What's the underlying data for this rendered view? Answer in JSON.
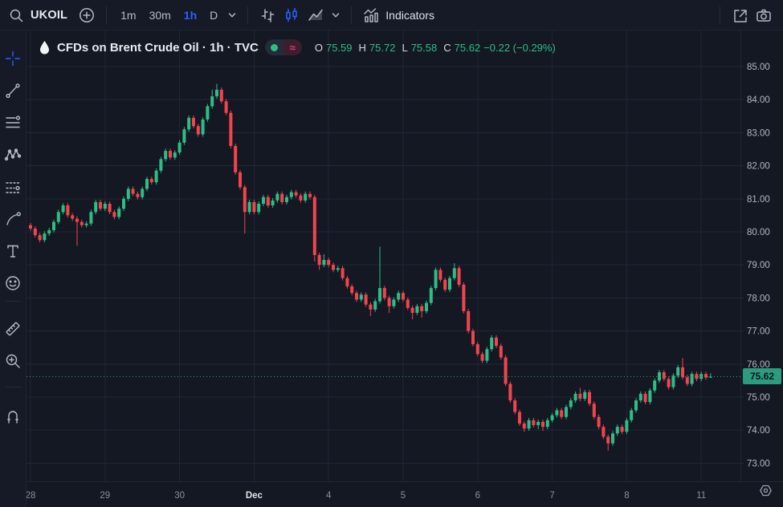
{
  "toolbar": {
    "symbol": "UKOIL",
    "timeframes": [
      {
        "label": "1m",
        "active": false
      },
      {
        "label": "30m",
        "active": false
      },
      {
        "label": "1h",
        "active": true
      },
      {
        "label": "D",
        "active": false
      }
    ],
    "indicators_label": "Indicators",
    "icons": [
      "search-icon",
      "compare-add-icon",
      "chevron-down-icon",
      "bars-chart-type-icon",
      "candles-chart-type-icon",
      "area-chart-type-icon",
      "indicators-icon",
      "fullscreen-icon",
      "snapshot-camera-icon"
    ]
  },
  "sidebar_tools": [
    "crosshair",
    "trend-line",
    "horizontal-lines",
    "xabcd-pattern",
    "forecast",
    "brush",
    "text",
    "emoji",
    "ruler",
    "zoom-in",
    "magnet"
  ],
  "legend": {
    "title": "CFDs on Brent Crude Oil · 1h · TVC",
    "delayed_symbol": "≈",
    "ohlc": {
      "open_label": "O",
      "open": "75.59",
      "high_label": "H",
      "high": "75.72",
      "low_label": "L",
      "low": "75.58",
      "close_label": "C",
      "close": "75.62",
      "change": "−0.22 (−0.29%)"
    }
  },
  "colors": {
    "bg": "#141823",
    "panel": "#151a26",
    "grid": "#202637",
    "up": "#2ebd85",
    "down": "#f2444f",
    "accent": "#2962ff",
    "axis_text": "#b2b6c1",
    "axis_text_major": "#dfe3ea",
    "last_price_bg": "#2c9c7e",
    "last_price_line": "#2c9c7e"
  },
  "chart_data": {
    "type": "candlestick",
    "title": "CFDs on Brent Crude Oil · 1h · TVC",
    "symbol": "UKOIL",
    "interval": "1h",
    "exchange": "TVC",
    "open": 75.59,
    "high": 75.72,
    "low": 75.58,
    "close": 75.62,
    "change": -0.22,
    "change_pct": -0.29,
    "last_price": 75.62,
    "last_price_label": "75.62",
    "y_axis": {
      "ticks": [
        "85.00",
        "84.00",
        "83.00",
        "82.00",
        "81.00",
        "80.00",
        "79.00",
        "78.00",
        "77.00",
        "76.00",
        "75.00",
        "74.00",
        "73.00"
      ],
      "min": 72.6,
      "max": 85.9
    },
    "x_axis": {
      "candles_per_day": 16,
      "ticks": [
        {
          "label": "28",
          "index": 0,
          "major": false
        },
        {
          "label": "29",
          "index": 16,
          "major": false
        },
        {
          "label": "30",
          "index": 32,
          "major": false
        },
        {
          "label": "Dec",
          "index": 48,
          "major": true
        },
        {
          "label": "4",
          "index": 64,
          "major": false
        },
        {
          "label": "5",
          "index": 80,
          "major": false
        },
        {
          "label": "6",
          "index": 96,
          "major": false
        },
        {
          "label": "7",
          "index": 112,
          "major": false
        },
        {
          "label": "8",
          "index": 128,
          "major": false
        },
        {
          "label": "11",
          "index": 144,
          "major": false
        }
      ]
    },
    "candles": [
      [
        80.2,
        80.27,
        80.03,
        80.1
      ],
      [
        80.1,
        80.17,
        79.83,
        79.9
      ],
      [
        79.9,
        79.97,
        79.68,
        79.75
      ],
      [
        79.75,
        80.02,
        79.68,
        79.95
      ],
      [
        79.95,
        80.12,
        79.88,
        80.05
      ],
      [
        80.05,
        80.37,
        79.98,
        80.3
      ],
      [
        80.3,
        80.67,
        80.23,
        80.6
      ],
      [
        80.6,
        80.87,
        80.53,
        80.8
      ],
      [
        80.8,
        80.87,
        80.43,
        80.5
      ],
      [
        80.5,
        80.57,
        80.33,
        80.4
      ],
      [
        80.4,
        80.47,
        79.58,
        80.3
      ],
      [
        80.3,
        80.37,
        80.13,
        80.2
      ],
      [
        80.2,
        80.32,
        80.13,
        80.25
      ],
      [
        80.25,
        80.67,
        80.18,
        80.6
      ],
      [
        80.6,
        80.97,
        80.53,
        80.9
      ],
      [
        80.9,
        80.97,
        80.63,
        80.7
      ],
      [
        80.7,
        80.92,
        80.63,
        80.85
      ],
      [
        80.85,
        80.92,
        80.53,
        80.6
      ],
      [
        80.6,
        80.67,
        80.38,
        80.45
      ],
      [
        80.45,
        80.77,
        80.38,
        80.7
      ],
      [
        80.7,
        81.07,
        80.63,
        81.0
      ],
      [
        81.0,
        81.37,
        80.93,
        81.3
      ],
      [
        81.3,
        81.37,
        81.08,
        81.15
      ],
      [
        81.15,
        81.22,
        80.98,
        81.05
      ],
      [
        81.05,
        81.37,
        80.98,
        81.3
      ],
      [
        81.3,
        81.67,
        81.23,
        81.6
      ],
      [
        81.6,
        81.67,
        81.43,
        81.5
      ],
      [
        81.5,
        81.92,
        81.43,
        81.85
      ],
      [
        81.85,
        82.27,
        81.78,
        82.2
      ],
      [
        82.2,
        82.52,
        82.13,
        82.45
      ],
      [
        82.45,
        82.52,
        82.18,
        82.25
      ],
      [
        82.25,
        82.47,
        82.18,
        82.4
      ],
      [
        82.4,
        82.77,
        82.33,
        82.7
      ],
      [
        82.7,
        83.17,
        82.63,
        83.1
      ],
      [
        83.1,
        83.52,
        83.03,
        83.45
      ],
      [
        83.45,
        83.52,
        83.13,
        83.2
      ],
      [
        83.2,
        83.27,
        82.88,
        82.95
      ],
      [
        82.95,
        83.47,
        82.88,
        83.4
      ],
      [
        83.4,
        83.87,
        83.33,
        83.8
      ],
      [
        83.8,
        84.3,
        83.73,
        84.1
      ],
      [
        84.1,
        84.48,
        84.03,
        84.3
      ],
      [
        84.3,
        84.37,
        83.88,
        83.95
      ],
      [
        83.95,
        84.02,
        83.53,
        83.6
      ],
      [
        83.6,
        83.67,
        82.53,
        82.6
      ],
      [
        82.6,
        82.67,
        81.73,
        81.8
      ],
      [
        81.8,
        81.87,
        81.28,
        81.35
      ],
      [
        81.35,
        81.42,
        79.95,
        80.6
      ],
      [
        80.6,
        80.97,
        80.53,
        80.9
      ],
      [
        80.9,
        80.97,
        80.53,
        80.6
      ],
      [
        80.6,
        80.92,
        80.53,
        80.85
      ],
      [
        80.85,
        81.12,
        80.78,
        81.05
      ],
      [
        81.05,
        81.12,
        80.73,
        80.8
      ],
      [
        80.8,
        81.02,
        80.73,
        80.95
      ],
      [
        80.95,
        81.22,
        80.88,
        81.15
      ],
      [
        81.15,
        81.22,
        80.83,
        80.9
      ],
      [
        80.9,
        81.12,
        80.83,
        81.05
      ],
      [
        81.05,
        81.27,
        80.98,
        81.2
      ],
      [
        81.2,
        81.27,
        81.03,
        81.1
      ],
      [
        81.1,
        81.17,
        80.88,
        80.95
      ],
      [
        80.95,
        81.22,
        80.88,
        81.15
      ],
      [
        81.15,
        81.22,
        80.98,
        81.05
      ],
      [
        81.05,
        81.12,
        79.1,
        79.3
      ],
      [
        79.3,
        79.37,
        78.85,
        79.0
      ],
      [
        79.0,
        79.32,
        78.93,
        79.15
      ],
      [
        79.15,
        79.22,
        78.93,
        79.0
      ],
      [
        79.0,
        79.07,
        78.78,
        78.85
      ],
      [
        78.85,
        78.97,
        78.78,
        78.9
      ],
      [
        78.9,
        78.97,
        78.53,
        78.6
      ],
      [
        78.6,
        78.67,
        78.28,
        78.35
      ],
      [
        78.35,
        78.42,
        78.08,
        78.15
      ],
      [
        78.15,
        78.22,
        77.88,
        77.95
      ],
      [
        77.95,
        78.17,
        77.88,
        78.1
      ],
      [
        78.1,
        78.17,
        77.73,
        77.8
      ],
      [
        77.8,
        77.87,
        77.45,
        77.65
      ],
      [
        77.65,
        77.97,
        77.58,
        77.9
      ],
      [
        77.9,
        79.55,
        77.83,
        78.3
      ],
      [
        78.3,
        78.37,
        77.93,
        78.0
      ],
      [
        78.0,
        78.07,
        77.55,
        77.75
      ],
      [
        77.75,
        78.02,
        77.68,
        77.95
      ],
      [
        77.95,
        78.22,
        77.88,
        78.15
      ],
      [
        78.15,
        78.22,
        77.88,
        77.95
      ],
      [
        77.95,
        78.02,
        77.63,
        77.7
      ],
      [
        77.7,
        77.77,
        77.35,
        77.55
      ],
      [
        77.55,
        77.82,
        77.48,
        77.75
      ],
      [
        77.75,
        77.82,
        77.4,
        77.6
      ],
      [
        77.6,
        77.92,
        77.53,
        77.85
      ],
      [
        77.85,
        78.37,
        77.78,
        78.3
      ],
      [
        78.3,
        78.92,
        78.23,
        78.85
      ],
      [
        78.85,
        78.92,
        78.48,
        78.55
      ],
      [
        78.55,
        78.62,
        78.18,
        78.25
      ],
      [
        78.25,
        78.67,
        78.18,
        78.6
      ],
      [
        78.6,
        79.05,
        78.53,
        78.9
      ],
      [
        78.9,
        78.97,
        78.33,
        78.4
      ],
      [
        78.4,
        78.47,
        77.53,
        77.6
      ],
      [
        77.6,
        77.67,
        76.93,
        77.0
      ],
      [
        77.0,
        77.07,
        76.53,
        76.6
      ],
      [
        76.6,
        76.67,
        76.23,
        76.3
      ],
      [
        76.3,
        76.37,
        76.03,
        76.1
      ],
      [
        76.1,
        76.52,
        76.03,
        76.45
      ],
      [
        76.45,
        76.87,
        76.38,
        76.8
      ],
      [
        76.8,
        76.87,
        76.48,
        76.55
      ],
      [
        76.55,
        76.62,
        76.13,
        76.2
      ],
      [
        76.2,
        76.27,
        75.33,
        75.4
      ],
      [
        75.4,
        75.47,
        74.83,
        74.9
      ],
      [
        74.9,
        74.97,
        74.48,
        74.55
      ],
      [
        74.55,
        74.62,
        74.13,
        74.2
      ],
      [
        74.2,
        74.27,
        73.95,
        74.05
      ],
      [
        74.05,
        74.37,
        73.98,
        74.3
      ],
      [
        74.3,
        74.37,
        74.08,
        74.15
      ],
      [
        74.15,
        74.32,
        74.03,
        74.25
      ],
      [
        74.25,
        74.32,
        73.98,
        74.1
      ],
      [
        74.1,
        74.37,
        74.03,
        74.3
      ],
      [
        74.3,
        74.52,
        74.23,
        74.45
      ],
      [
        74.45,
        74.67,
        74.38,
        74.6
      ],
      [
        74.6,
        74.67,
        74.33,
        74.4
      ],
      [
        74.4,
        74.77,
        74.33,
        74.7
      ],
      [
        74.7,
        74.97,
        74.63,
        74.9
      ],
      [
        74.9,
        75.17,
        74.83,
        75.1
      ],
      [
        75.1,
        75.28,
        74.88,
        74.95
      ],
      [
        74.95,
        75.22,
        74.88,
        75.15
      ],
      [
        75.15,
        75.22,
        74.73,
        74.8
      ],
      [
        74.8,
        74.87,
        74.33,
        74.4
      ],
      [
        74.4,
        74.47,
        74.03,
        74.1
      ],
      [
        74.1,
        74.17,
        73.73,
        73.8
      ],
      [
        73.8,
        73.87,
        73.38,
        73.6
      ],
      [
        73.6,
        73.97,
        73.53,
        73.9
      ],
      [
        73.9,
        74.17,
        73.83,
        74.1
      ],
      [
        74.1,
        74.17,
        73.88,
        73.95
      ],
      [
        73.95,
        74.37,
        73.88,
        74.3
      ],
      [
        74.3,
        74.67,
        74.23,
        74.6
      ],
      [
        74.6,
        74.97,
        74.53,
        74.9
      ],
      [
        74.9,
        75.17,
        74.83,
        75.1
      ],
      [
        75.1,
        75.17,
        74.78,
        74.85
      ],
      [
        74.85,
        75.27,
        74.78,
        75.2
      ],
      [
        75.2,
        75.57,
        75.13,
        75.5
      ],
      [
        75.5,
        75.82,
        75.43,
        75.75
      ],
      [
        75.75,
        75.82,
        75.48,
        75.55
      ],
      [
        75.55,
        75.62,
        75.23,
        75.3
      ],
      [
        75.3,
        75.72,
        75.23,
        75.65
      ],
      [
        75.65,
        75.97,
        75.58,
        75.9
      ],
      [
        75.9,
        76.18,
        75.53,
        75.6
      ],
      [
        75.6,
        75.67,
        75.33,
        75.4
      ],
      [
        75.4,
        75.77,
        75.33,
        75.7
      ],
      [
        75.7,
        75.77,
        75.48,
        75.55
      ],
      [
        75.55,
        75.77,
        75.48,
        75.7
      ],
      [
        75.7,
        75.77,
        75.52,
        75.59
      ],
      [
        75.59,
        75.72,
        75.58,
        75.62
      ]
    ]
  }
}
